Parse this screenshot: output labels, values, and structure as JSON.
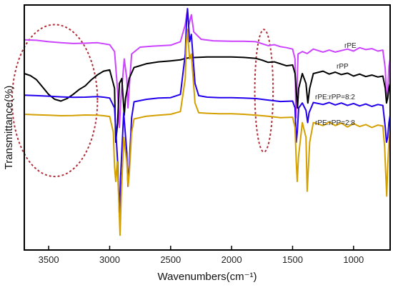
{
  "chart_data": {
    "type": "line",
    "xlabel": "Wavenumbers(cm⁻¹)",
    "ylabel": "Transmittance(%)",
    "xlim": [
      3700,
      700
    ],
    "x_reversed": true,
    "xticks": [
      3500,
      3000,
      2500,
      2000,
      1500,
      1000
    ],
    "ylim": [
      0,
      100
    ],
    "yticks_labeled": false,
    "grid": false,
    "series": [
      {
        "name": "rPE",
        "color": "#cc44ff",
        "points": [
          [
            3700,
            85.8
          ],
          [
            3600,
            85.6
          ],
          [
            3500,
            85.0
          ],
          [
            3400,
            84.6
          ],
          [
            3300,
            84.3
          ],
          [
            3200,
            84.4
          ],
          [
            3100,
            84.6
          ],
          [
            3050,
            84.2
          ],
          [
            3000,
            83.8
          ],
          [
            2960,
            81.0
          ],
          [
            2935,
            65.0
          ],
          [
            2920,
            50.0
          ],
          [
            2910,
            60.0
          ],
          [
            2880,
            78.0
          ],
          [
            2860,
            70.0
          ],
          [
            2850,
            58.0
          ],
          [
            2840,
            66.0
          ],
          [
            2820,
            80.0
          ],
          [
            2750,
            82.8
          ],
          [
            2650,
            83.2
          ],
          [
            2500,
            83.6
          ],
          [
            2420,
            85.0
          ],
          [
            2380,
            92.0
          ],
          [
            2365,
            97.0
          ],
          [
            2350,
            92.0
          ],
          [
            2330,
            96.0
          ],
          [
            2310,
            89.0
          ],
          [
            2250,
            86.0
          ],
          [
            2150,
            85.4
          ],
          [
            2000,
            85.2
          ],
          [
            1900,
            85.2
          ],
          [
            1800,
            85.0
          ],
          [
            1750,
            84.2
          ],
          [
            1700,
            83.4
          ],
          [
            1650,
            83.8
          ],
          [
            1600,
            83.0
          ],
          [
            1550,
            82.6
          ],
          [
            1500,
            82.0
          ],
          [
            1480,
            78.0
          ],
          [
            1472,
            54.0
          ],
          [
            1464,
            66.0
          ],
          [
            1455,
            80.0
          ],
          [
            1420,
            81.0
          ],
          [
            1380,
            80.2
          ],
          [
            1330,
            82.0
          ],
          [
            1250,
            80.8
          ],
          [
            1200,
            81.6
          ],
          [
            1150,
            80.8
          ],
          [
            1100,
            81.4
          ],
          [
            1050,
            82.0
          ],
          [
            1000,
            81.2
          ],
          [
            950,
            82.6
          ],
          [
            900,
            81.8
          ],
          [
            850,
            82.2
          ],
          [
            800,
            81.2
          ],
          [
            760,
            81.6
          ],
          [
            740,
            74.0
          ],
          [
            730,
            62.0
          ],
          [
            720,
            64.0
          ],
          [
            710,
            75.0
          ],
          [
            700,
            78.0
          ]
        ]
      },
      {
        "name": "rPP",
        "color": "#000000",
        "points": [
          [
            3700,
            72.0
          ],
          [
            3650,
            71.2
          ],
          [
            3600,
            69.5
          ],
          [
            3550,
            66.5
          ],
          [
            3500,
            63.5
          ],
          [
            3450,
            61.5
          ],
          [
            3400,
            60.8
          ],
          [
            3350,
            61.8
          ],
          [
            3300,
            63.5
          ],
          [
            3250,
            65.5
          ],
          [
            3200,
            67.0
          ],
          [
            3150,
            69.5
          ],
          [
            3100,
            71.5
          ],
          [
            3050,
            73.0
          ],
          [
            3000,
            73.5
          ],
          [
            2960,
            66.0
          ],
          [
            2950,
            44.0
          ],
          [
            2935,
            52.0
          ],
          [
            2920,
            68.0
          ],
          [
            2900,
            70.0
          ],
          [
            2880,
            55.0
          ],
          [
            2870,
            62.0
          ],
          [
            2840,
            70.0
          ],
          [
            2800,
            74.5
          ],
          [
            2700,
            76.0
          ],
          [
            2600,
            76.8
          ],
          [
            2500,
            77.2
          ],
          [
            2420,
            77.6
          ],
          [
            2380,
            78.2
          ],
          [
            2340,
            78.5
          ],
          [
            2200,
            78.8
          ],
          [
            2000,
            78.8
          ],
          [
            1900,
            78.6
          ],
          [
            1800,
            78.2
          ],
          [
            1750,
            77.5
          ],
          [
            1700,
            76.6
          ],
          [
            1650,
            76.8
          ],
          [
            1600,
            76.0
          ],
          [
            1550,
            75.2
          ],
          [
            1500,
            75.5
          ],
          [
            1480,
            72.0
          ],
          [
            1460,
            58.0
          ],
          [
            1450,
            66.0
          ],
          [
            1420,
            72.0
          ],
          [
            1390,
            68.0
          ],
          [
            1375,
            60.0
          ],
          [
            1360,
            66.0
          ],
          [
            1330,
            72.0
          ],
          [
            1250,
            73.0
          ],
          [
            1200,
            71.8
          ],
          [
            1150,
            72.6
          ],
          [
            1100,
            71.6
          ],
          [
            1050,
            72.2
          ],
          [
            1000,
            71.0
          ],
          [
            950,
            71.8
          ],
          [
            900,
            70.8
          ],
          [
            850,
            71.4
          ],
          [
            800,
            70.6
          ],
          [
            760,
            71.0
          ],
          [
            740,
            66.0
          ],
          [
            730,
            60.0
          ],
          [
            720,
            62.0
          ],
          [
            710,
            66.0
          ],
          [
            700,
            68.0
          ]
        ]
      },
      {
        "name": "rPE:rPP=8:2",
        "color": "#2200ee",
        "points": [
          [
            3700,
            63.2
          ],
          [
            3600,
            63.0
          ],
          [
            3500,
            62.8
          ],
          [
            3400,
            62.5
          ],
          [
            3300,
            62.3
          ],
          [
            3200,
            62.4
          ],
          [
            3100,
            62.6
          ],
          [
            3050,
            62.4
          ],
          [
            3000,
            62.0
          ],
          [
            2960,
            58.0
          ],
          [
            2935,
            36.0
          ],
          [
            2920,
            14.0
          ],
          [
            2910,
            30.0
          ],
          [
            2885,
            56.0
          ],
          [
            2860,
            40.0
          ],
          [
            2850,
            26.0
          ],
          [
            2840,
            34.0
          ],
          [
            2820,
            54.0
          ],
          [
            2800,
            60.5
          ],
          [
            2700,
            61.5
          ],
          [
            2600,
            62.0
          ],
          [
            2500,
            62.2
          ],
          [
            2420,
            63.5
          ],
          [
            2380,
            80.0
          ],
          [
            2370,
            93.0
          ],
          [
            2362,
            98.5
          ],
          [
            2355,
            94.0
          ],
          [
            2345,
            85.0
          ],
          [
            2330,
            88.0
          ],
          [
            2300,
            68.0
          ],
          [
            2270,
            63.0
          ],
          [
            2200,
            62.4
          ],
          [
            2100,
            62.2
          ],
          [
            2000,
            62.2
          ],
          [
            1900,
            62.0
          ],
          [
            1800,
            61.8
          ],
          [
            1700,
            61.2
          ],
          [
            1600,
            60.6
          ],
          [
            1500,
            60.8
          ],
          [
            1480,
            58.0
          ],
          [
            1470,
            44.0
          ],
          [
            1462,
            48.0
          ],
          [
            1450,
            58.0
          ],
          [
            1420,
            60.0
          ],
          [
            1390,
            57.0
          ],
          [
            1376,
            52.0
          ],
          [
            1365,
            56.0
          ],
          [
            1330,
            60.2
          ],
          [
            1250,
            59.4
          ],
          [
            1200,
            60.2
          ],
          [
            1150,
            59.2
          ],
          [
            1100,
            60.0
          ],
          [
            1050,
            59.0
          ],
          [
            1000,
            59.8
          ],
          [
            950,
            58.8
          ],
          [
            900,
            59.6
          ],
          [
            850,
            58.6
          ],
          [
            800,
            59.4
          ],
          [
            760,
            59.0
          ],
          [
            740,
            50.0
          ],
          [
            730,
            44.0
          ],
          [
            720,
            46.0
          ],
          [
            710,
            52.0
          ],
          [
            700,
            55.0
          ]
        ]
      },
      {
        "name": "rPE:rPP=2:8",
        "color": "#d4a000",
        "points": [
          [
            3700,
            55.4
          ],
          [
            3600,
            55.2
          ],
          [
            3500,
            55.0
          ],
          [
            3400,
            54.8
          ],
          [
            3300,
            54.9
          ],
          [
            3200,
            55.1
          ],
          [
            3100,
            55.0
          ],
          [
            3050,
            54.8
          ],
          [
            3000,
            54.5
          ],
          [
            2970,
            48.0
          ],
          [
            2960,
            34.0
          ],
          [
            2950,
            28.0
          ],
          [
            2938,
            36.0
          ],
          [
            2925,
            20.0
          ],
          [
            2915,
            6.0
          ],
          [
            2905,
            22.0
          ],
          [
            2885,
            46.0
          ],
          [
            2860,
            36.0
          ],
          [
            2848,
            26.0
          ],
          [
            2838,
            32.0
          ],
          [
            2820,
            48.0
          ],
          [
            2800,
            53.5
          ],
          [
            2700,
            54.6
          ],
          [
            2600,
            55.0
          ],
          [
            2500,
            55.4
          ],
          [
            2420,
            56.5
          ],
          [
            2380,
            70.0
          ],
          [
            2372,
            84.0
          ],
          [
            2362,
            90.0
          ],
          [
            2355,
            85.0
          ],
          [
            2345,
            78.0
          ],
          [
            2330,
            80.0
          ],
          [
            2300,
            60.0
          ],
          [
            2270,
            56.0
          ],
          [
            2200,
            55.8
          ],
          [
            2100,
            55.6
          ],
          [
            2000,
            55.6
          ],
          [
            1900,
            55.4
          ],
          [
            1800,
            55.0
          ],
          [
            1700,
            54.6
          ],
          [
            1600,
            54.0
          ],
          [
            1500,
            54.2
          ],
          [
            1480,
            50.0
          ],
          [
            1470,
            36.0
          ],
          [
            1462,
            28.0
          ],
          [
            1452,
            38.0
          ],
          [
            1420,
            52.0
          ],
          [
            1390,
            46.0
          ],
          [
            1380,
            24.0
          ],
          [
            1372,
            32.0
          ],
          [
            1360,
            44.0
          ],
          [
            1330,
            52.0
          ],
          [
            1250,
            50.8
          ],
          [
            1200,
            52.2
          ],
          [
            1150,
            50.8
          ],
          [
            1100,
            51.8
          ],
          [
            1050,
            50.2
          ],
          [
            1000,
            51.6
          ],
          [
            950,
            50.4
          ],
          [
            900,
            51.2
          ],
          [
            850,
            50.0
          ],
          [
            800,
            51.0
          ],
          [
            760,
            50.6
          ],
          [
            745,
            42.0
          ],
          [
            735,
            30.0
          ],
          [
            728,
            22.0
          ],
          [
            720,
            34.0
          ],
          [
            710,
            44.0
          ],
          [
            700,
            48.0
          ]
        ]
      }
    ],
    "annotations": [
      {
        "type": "dashed-ellipse",
        "color": "#b0303a",
        "x_range": [
          3800,
          3100
        ],
        "y_range": [
          30,
          92
        ]
      },
      {
        "type": "dashed-ellipse",
        "color": "#b0303a",
        "x_range": [
          1810,
          1660
        ],
        "y_range": [
          40,
          90
        ]
      }
    ]
  }
}
